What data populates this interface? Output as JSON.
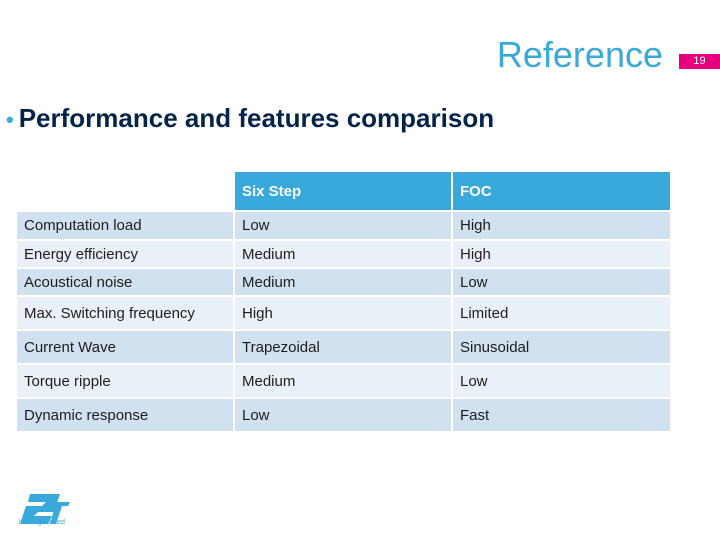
{
  "slide": {
    "title": "Reference",
    "page_number": "19",
    "bullet": "Performance and features comparison"
  },
  "table": {
    "headers": [
      "",
      "Six Step",
      "FOC"
    ],
    "rows": [
      [
        "Computation load",
        "Low",
        "High"
      ],
      [
        "Energy efficiency",
        "Medium",
        "High"
      ],
      [
        "Acoustical noise",
        "Medium",
        "Low"
      ],
      [
        "Max. Switching frequency",
        "High",
        "Limited"
      ],
      [
        "Current Wave",
        "Trapezoidal",
        "Sinusoidal"
      ],
      [
        "Torque ripple",
        "Medium",
        "Low"
      ],
      [
        "Dynamic response",
        "Low",
        "Fast"
      ]
    ]
  },
  "logo": {
    "tagline": "life.augmented",
    "brand_color": "#39a9dc"
  },
  "colors": {
    "accent": "#39a9dc",
    "page_badge": "#e6007e",
    "heading_text": "#03234b",
    "row_dark": "#d2e1f0",
    "row_light": "#e9f0f8"
  }
}
